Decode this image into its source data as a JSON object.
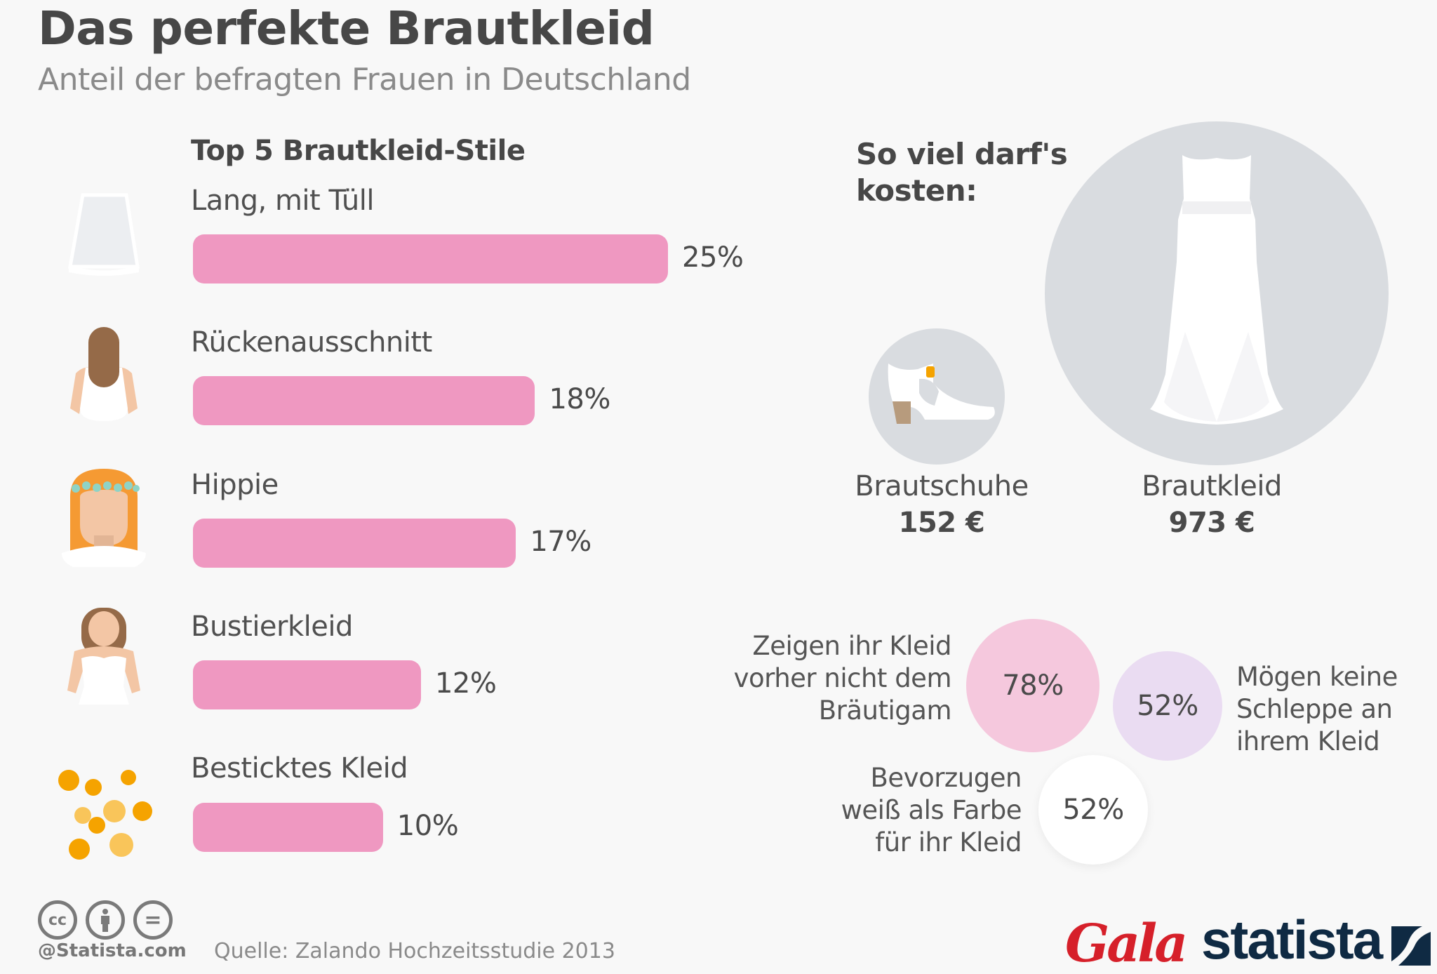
{
  "header": {
    "title": "Das perfekte Brautkleid",
    "subtitle": "Anteil der befragten Frauen in Deutschland"
  },
  "chart_data": [
    {
      "type": "bar",
      "orientation": "horizontal",
      "title": "Top 5 Brautkleid-Stile",
      "categories": [
        "Lang, mit Tüll",
        "Rückenausschnitt",
        "Hippie",
        "Bustierkleid",
        "Besticktes Kleid"
      ],
      "values": [
        25,
        18,
        17,
        12,
        10
      ],
      "value_labels": [
        "25%",
        "18%",
        "17%",
        "12%",
        "10%"
      ],
      "unit": "%",
      "icons": [
        "tulle-dress-icon",
        "open-back-bride-icon",
        "hippie-bride-icon",
        "bustier-bride-icon",
        "embroidery-beads-icon"
      ],
      "bar_color": "#ef98c1",
      "xlim": [
        0,
        25
      ],
      "grid": false
    },
    {
      "type": "bubble",
      "title": "So viel darf's kosten:",
      "categories": [
        "Brautschuhe",
        "Brautkleid"
      ],
      "values": [
        152,
        973
      ],
      "value_labels": [
        "152 €",
        "973 €"
      ],
      "unit": "€",
      "icons": [
        "bridal-shoe-icon",
        "wedding-dress-icon"
      ],
      "circle_color": "#d9dce0"
    },
    {
      "type": "bubble",
      "categories": [
        "Zeigen ihr Kleid vorher nicht dem Bräutigam",
        "Mögen keine Schleppe an ihrem Kleid",
        "Bevorzugen weiß als Farbe für ihr Kleid"
      ],
      "values": [
        78,
        52,
        52
      ],
      "value_labels": [
        "78%",
        "52%",
        "52%"
      ],
      "unit": "%",
      "colors": [
        "#f5c8dd",
        "#eadcf2",
        "#ffffff"
      ]
    }
  ],
  "cost": {
    "title_line1": "So viel darf's",
    "title_line2": "kosten:"
  },
  "facts": {
    "f1_lines": [
      "Zeigen ihr Kleid",
      "vorher nicht dem",
      "Bräutigam"
    ],
    "f2_lines": [
      "Mögen keine",
      "Schleppe an",
      "ihrem Kleid"
    ],
    "f3_lines": [
      "Bevorzugen",
      "weiß als Farbe",
      "für ihr Kleid"
    ]
  },
  "footer": {
    "license_icons": [
      "cc-icon",
      "by-attribution-icon",
      "no-derivatives-icon"
    ],
    "cc_text": "cc",
    "nd_text": "=",
    "copyright": "@Statista.com",
    "source": "Quelle: Zalando Hochzeitsstudie 2013",
    "partner_logo": "Gala",
    "brand_logo": "statista"
  }
}
